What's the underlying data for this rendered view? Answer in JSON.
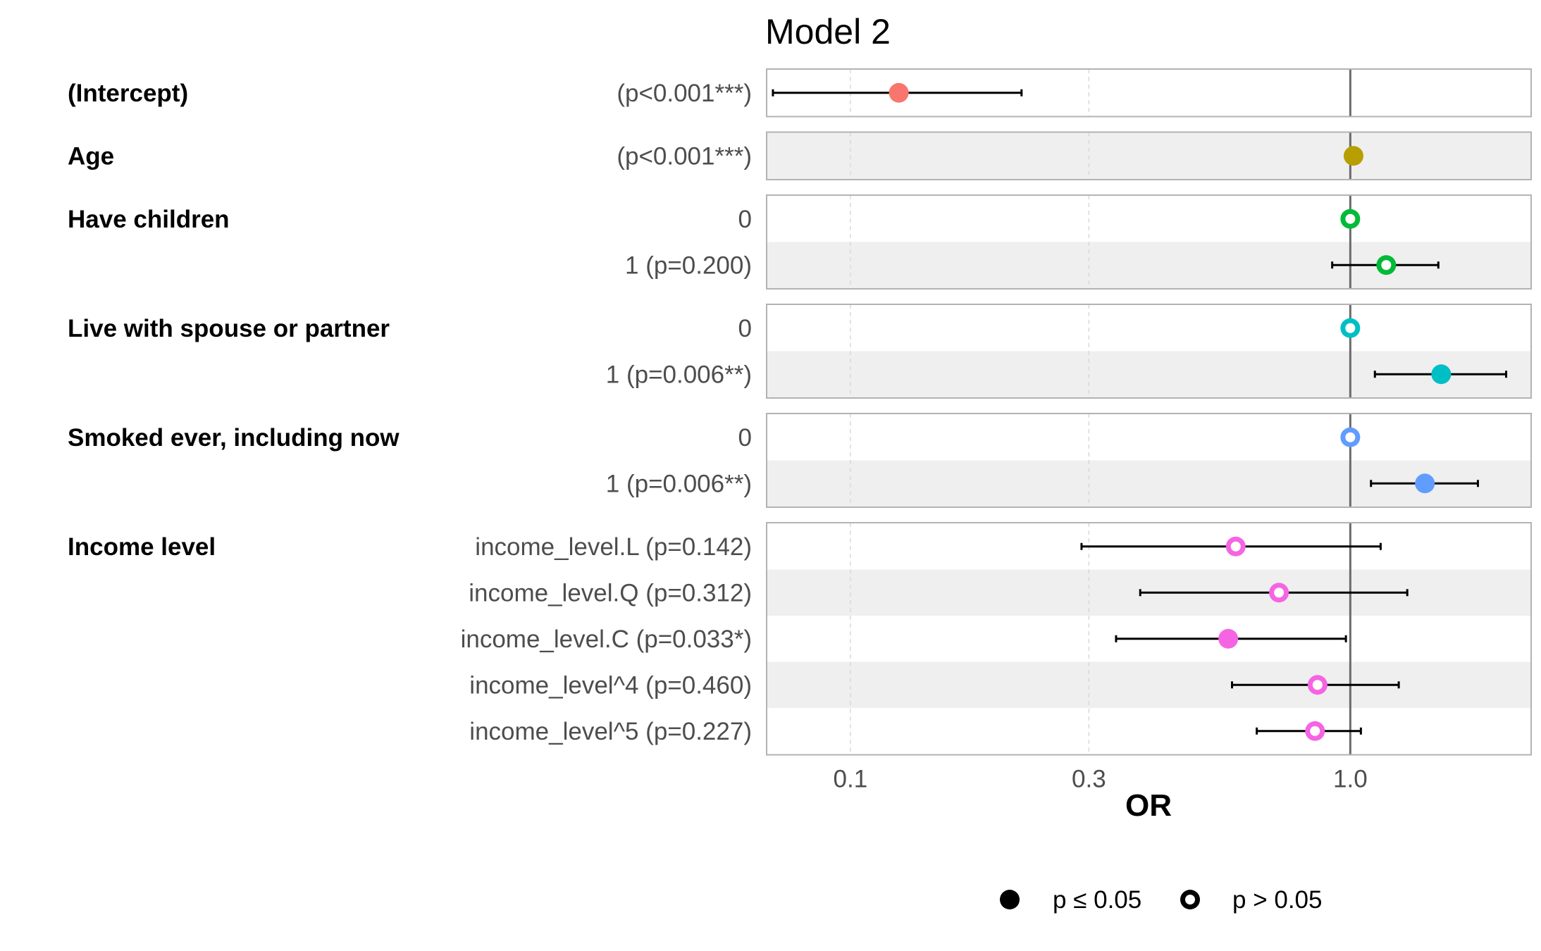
{
  "chart_data": {
    "type": "scatter",
    "subtype": "forest-plot",
    "title": "Model 2",
    "xlabel": "OR",
    "x_scale": "log",
    "xlim": [
      0.068,
      2.3
    ],
    "x_ticks": [
      {
        "value": 0.1,
        "label": "0.1"
      },
      {
        "value": 0.3,
        "label": "0.3"
      },
      {
        "value": 1.0,
        "label": "1.0"
      }
    ],
    "reference_line": 1.0,
    "legend": {
      "placement": "bottom",
      "items": [
        {
          "marker": "filled",
          "label": "p ≤ 0.05"
        },
        {
          "marker": "hollow",
          "label": "p > 0.05"
        }
      ]
    },
    "groups": [
      {
        "variable": "(Intercept)",
        "color": "#F8766D",
        "rows": [
          {
            "label": "(p<0.001***)",
            "or": 0.125,
            "lo": 0.07,
            "hi": 0.22,
            "significant": true
          }
        ]
      },
      {
        "variable": "Age",
        "color": "#B79F00",
        "rows": [
          {
            "label": "(p<0.001***)",
            "or": 1.015,
            "lo": null,
            "hi": null,
            "significant": true
          }
        ]
      },
      {
        "variable": "Have children",
        "color": "#00BA38",
        "rows": [
          {
            "label": "0",
            "or": 1.0,
            "lo": null,
            "hi": null,
            "significant": false
          },
          {
            "label": "1 (p=0.200)",
            "or": 1.18,
            "lo": 0.92,
            "hi": 1.5,
            "significant": false
          }
        ]
      },
      {
        "variable": "Live with spouse or partner",
        "color": "#00BFC4",
        "rows": [
          {
            "label": "0",
            "or": 1.0,
            "lo": null,
            "hi": null,
            "significant": false
          },
          {
            "label": "1 (p=0.006**)",
            "or": 1.52,
            "lo": 1.12,
            "hi": 2.05,
            "significant": true
          }
        ]
      },
      {
        "variable": "Smoked ever, including now",
        "color": "#619CFF",
        "rows": [
          {
            "label": "0",
            "or": 1.0,
            "lo": null,
            "hi": null,
            "significant": false
          },
          {
            "label": "1 (p=0.006**)",
            "or": 1.41,
            "lo": 1.1,
            "hi": 1.8,
            "significant": true
          }
        ]
      },
      {
        "variable": "Income level",
        "color": "#F564E3",
        "rows": [
          {
            "label": "income_level.L (p=0.142)",
            "or": 0.59,
            "lo": 0.29,
            "hi": 1.15,
            "significant": false
          },
          {
            "label": "income_level.Q (p=0.312)",
            "or": 0.72,
            "lo": 0.38,
            "hi": 1.3,
            "significant": false
          },
          {
            "label": "income_level.C (p=0.033*)",
            "or": 0.57,
            "lo": 0.34,
            "hi": 0.98,
            "significant": true
          },
          {
            "label": "income_level^4 (p=0.460)",
            "or": 0.86,
            "lo": 0.58,
            "hi": 1.25,
            "significant": false
          },
          {
            "label": "income_level^5 (p=0.227)",
            "or": 0.85,
            "lo": 0.65,
            "hi": 1.05,
            "significant": false
          }
        ]
      }
    ]
  }
}
